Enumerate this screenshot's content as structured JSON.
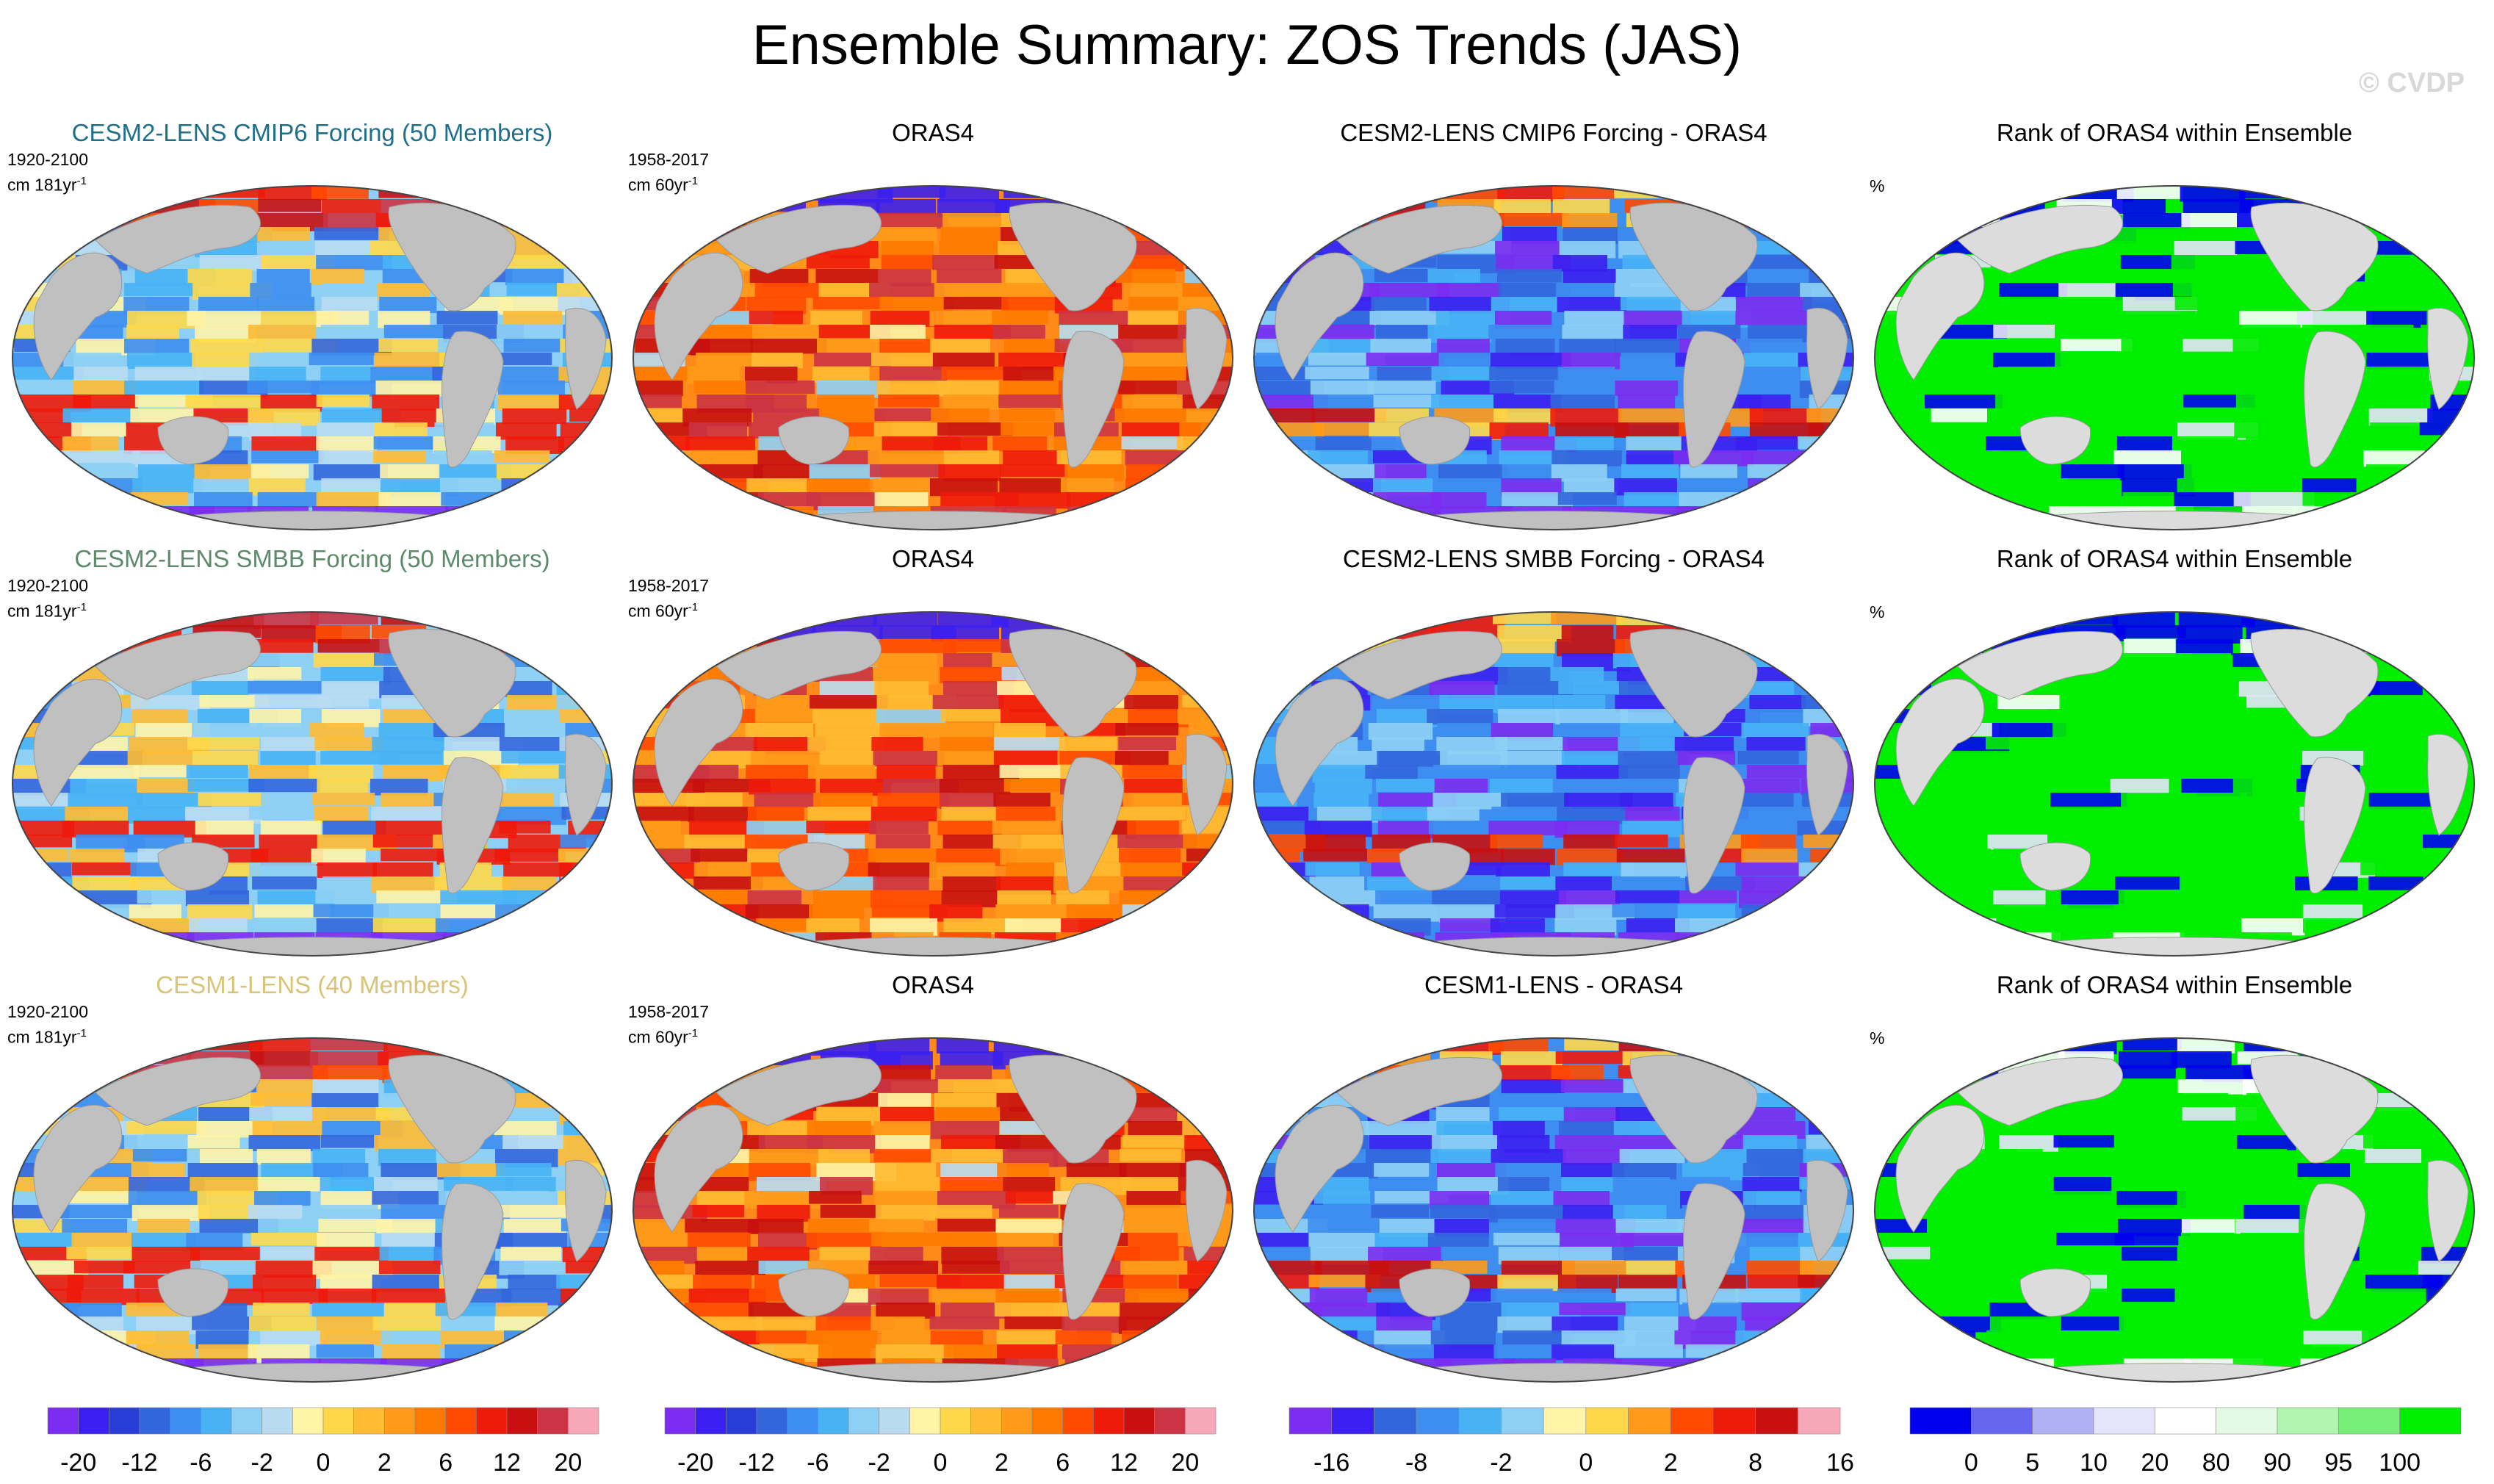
{
  "title": "Ensemble Summary: ZOS Trends (JAS)",
  "watermark": "© CVDP",
  "rows": [
    {
      "ensemble": {
        "title": "CESM2-LENS CMIP6 Forcing (50 Members)",
        "title_color": "#1f6f8b",
        "period": "1920-2100",
        "units": "cm 181yr",
        "units_sup": "-1"
      },
      "obs": {
        "title": "ORAS4",
        "period": "1958-2017",
        "units": "cm 60yr",
        "units_sup": "-1"
      },
      "diff": {
        "title": "CESM2-LENS CMIP6 Forcing - ORAS4"
      },
      "rank": {
        "title": "Rank of ORAS4 within Ensemble",
        "units": "%"
      }
    },
    {
      "ensemble": {
        "title": "CESM2-LENS SMBB Forcing (50 Members)",
        "title_color": "#5c8a6a",
        "period": "1920-2100",
        "units": "cm 181yr",
        "units_sup": "-1"
      },
      "obs": {
        "title": "ORAS4",
        "period": "1958-2017",
        "units": "cm 60yr",
        "units_sup": "-1"
      },
      "diff": {
        "title": "CESM2-LENS SMBB Forcing - ORAS4"
      },
      "rank": {
        "title": "Rank of ORAS4 within Ensemble",
        "units": "%"
      }
    },
    {
      "ensemble": {
        "title": "CESM1-LENS (40 Members)",
        "title_color": "#d8c478",
        "period": "1920-2100",
        "units": "cm 181yr",
        "units_sup": "-1"
      },
      "obs": {
        "title": "ORAS4",
        "period": "1958-2017",
        "units": "cm 60yr",
        "units_sup": "-1"
      },
      "diff": {
        "title": "CESM1-LENS - ORAS4"
      },
      "rank": {
        "title": "Rank of ORAS4 within Ensemble",
        "units": "%"
      }
    }
  ],
  "chart_data": [
    {
      "type": "heatmap",
      "name": "trend colorbar",
      "levels": [
        -20,
        -16,
        -12,
        -8,
        -6,
        -4,
        -2,
        -1,
        0,
        1,
        2,
        4,
        6,
        8,
        12,
        16,
        20
      ],
      "tick_labels": [
        "-20",
        "-12",
        "-6",
        "-2",
        "0",
        "2",
        "6",
        "12",
        "20"
      ],
      "tick_positions_level_index": [
        0,
        2,
        4,
        6,
        8,
        10,
        12,
        14,
        16
      ],
      "colors": [
        "#7b2cf0",
        "#3b1ff0",
        "#2a3cd8",
        "#3366dd",
        "#3d8ef0",
        "#48b2f5",
        "#8ed0f5",
        "#b8dbf2",
        "#fff4a8",
        "#ffd84a",
        "#ffbb33",
        "#ff9a1a",
        "#ff7a00",
        "#ff4a00",
        "#ee1a0a",
        "#c81010",
        "#cc3344",
        "#f7a8b8"
      ]
    },
    {
      "type": "heatmap",
      "name": "difference colorbar",
      "levels": [
        -16,
        -12,
        -8,
        -4,
        -2,
        -1,
        0,
        1,
        2,
        4,
        8,
        12,
        16
      ],
      "tick_labels": [
        "-16",
        "-8",
        "-2",
        "0",
        "2",
        "8",
        "16"
      ],
      "tick_positions_level_index": [
        0,
        2,
        4,
        6,
        8,
        10,
        12
      ],
      "colors": [
        "#7b2cf0",
        "#3b1ff0",
        "#3366dd",
        "#3d8ef0",
        "#48b2f5",
        "#8ed0f5",
        "#fff4a8",
        "#ffd84a",
        "#ff9a1a",
        "#ff4a00",
        "#ee1a0a",
        "#c81010",
        "#f7a8b8"
      ]
    },
    {
      "type": "heatmap",
      "name": "rank colorbar",
      "levels": [
        0,
        5,
        10,
        20,
        80,
        90,
        95,
        100
      ],
      "tick_labels": [
        "0",
        "5",
        "10",
        "20",
        "80",
        "90",
        "95",
        "100"
      ],
      "tick_positions_level_index": [
        0,
        1,
        2,
        3,
        4,
        5,
        6,
        7
      ],
      "colors": [
        "#0000ee",
        "#6666ee",
        "#b0b0f4",
        "#e4e4fa",
        "#ffffff",
        "#e4fae4",
        "#b0f4b0",
        "#77ee77",
        "#00ee00"
      ]
    }
  ]
}
